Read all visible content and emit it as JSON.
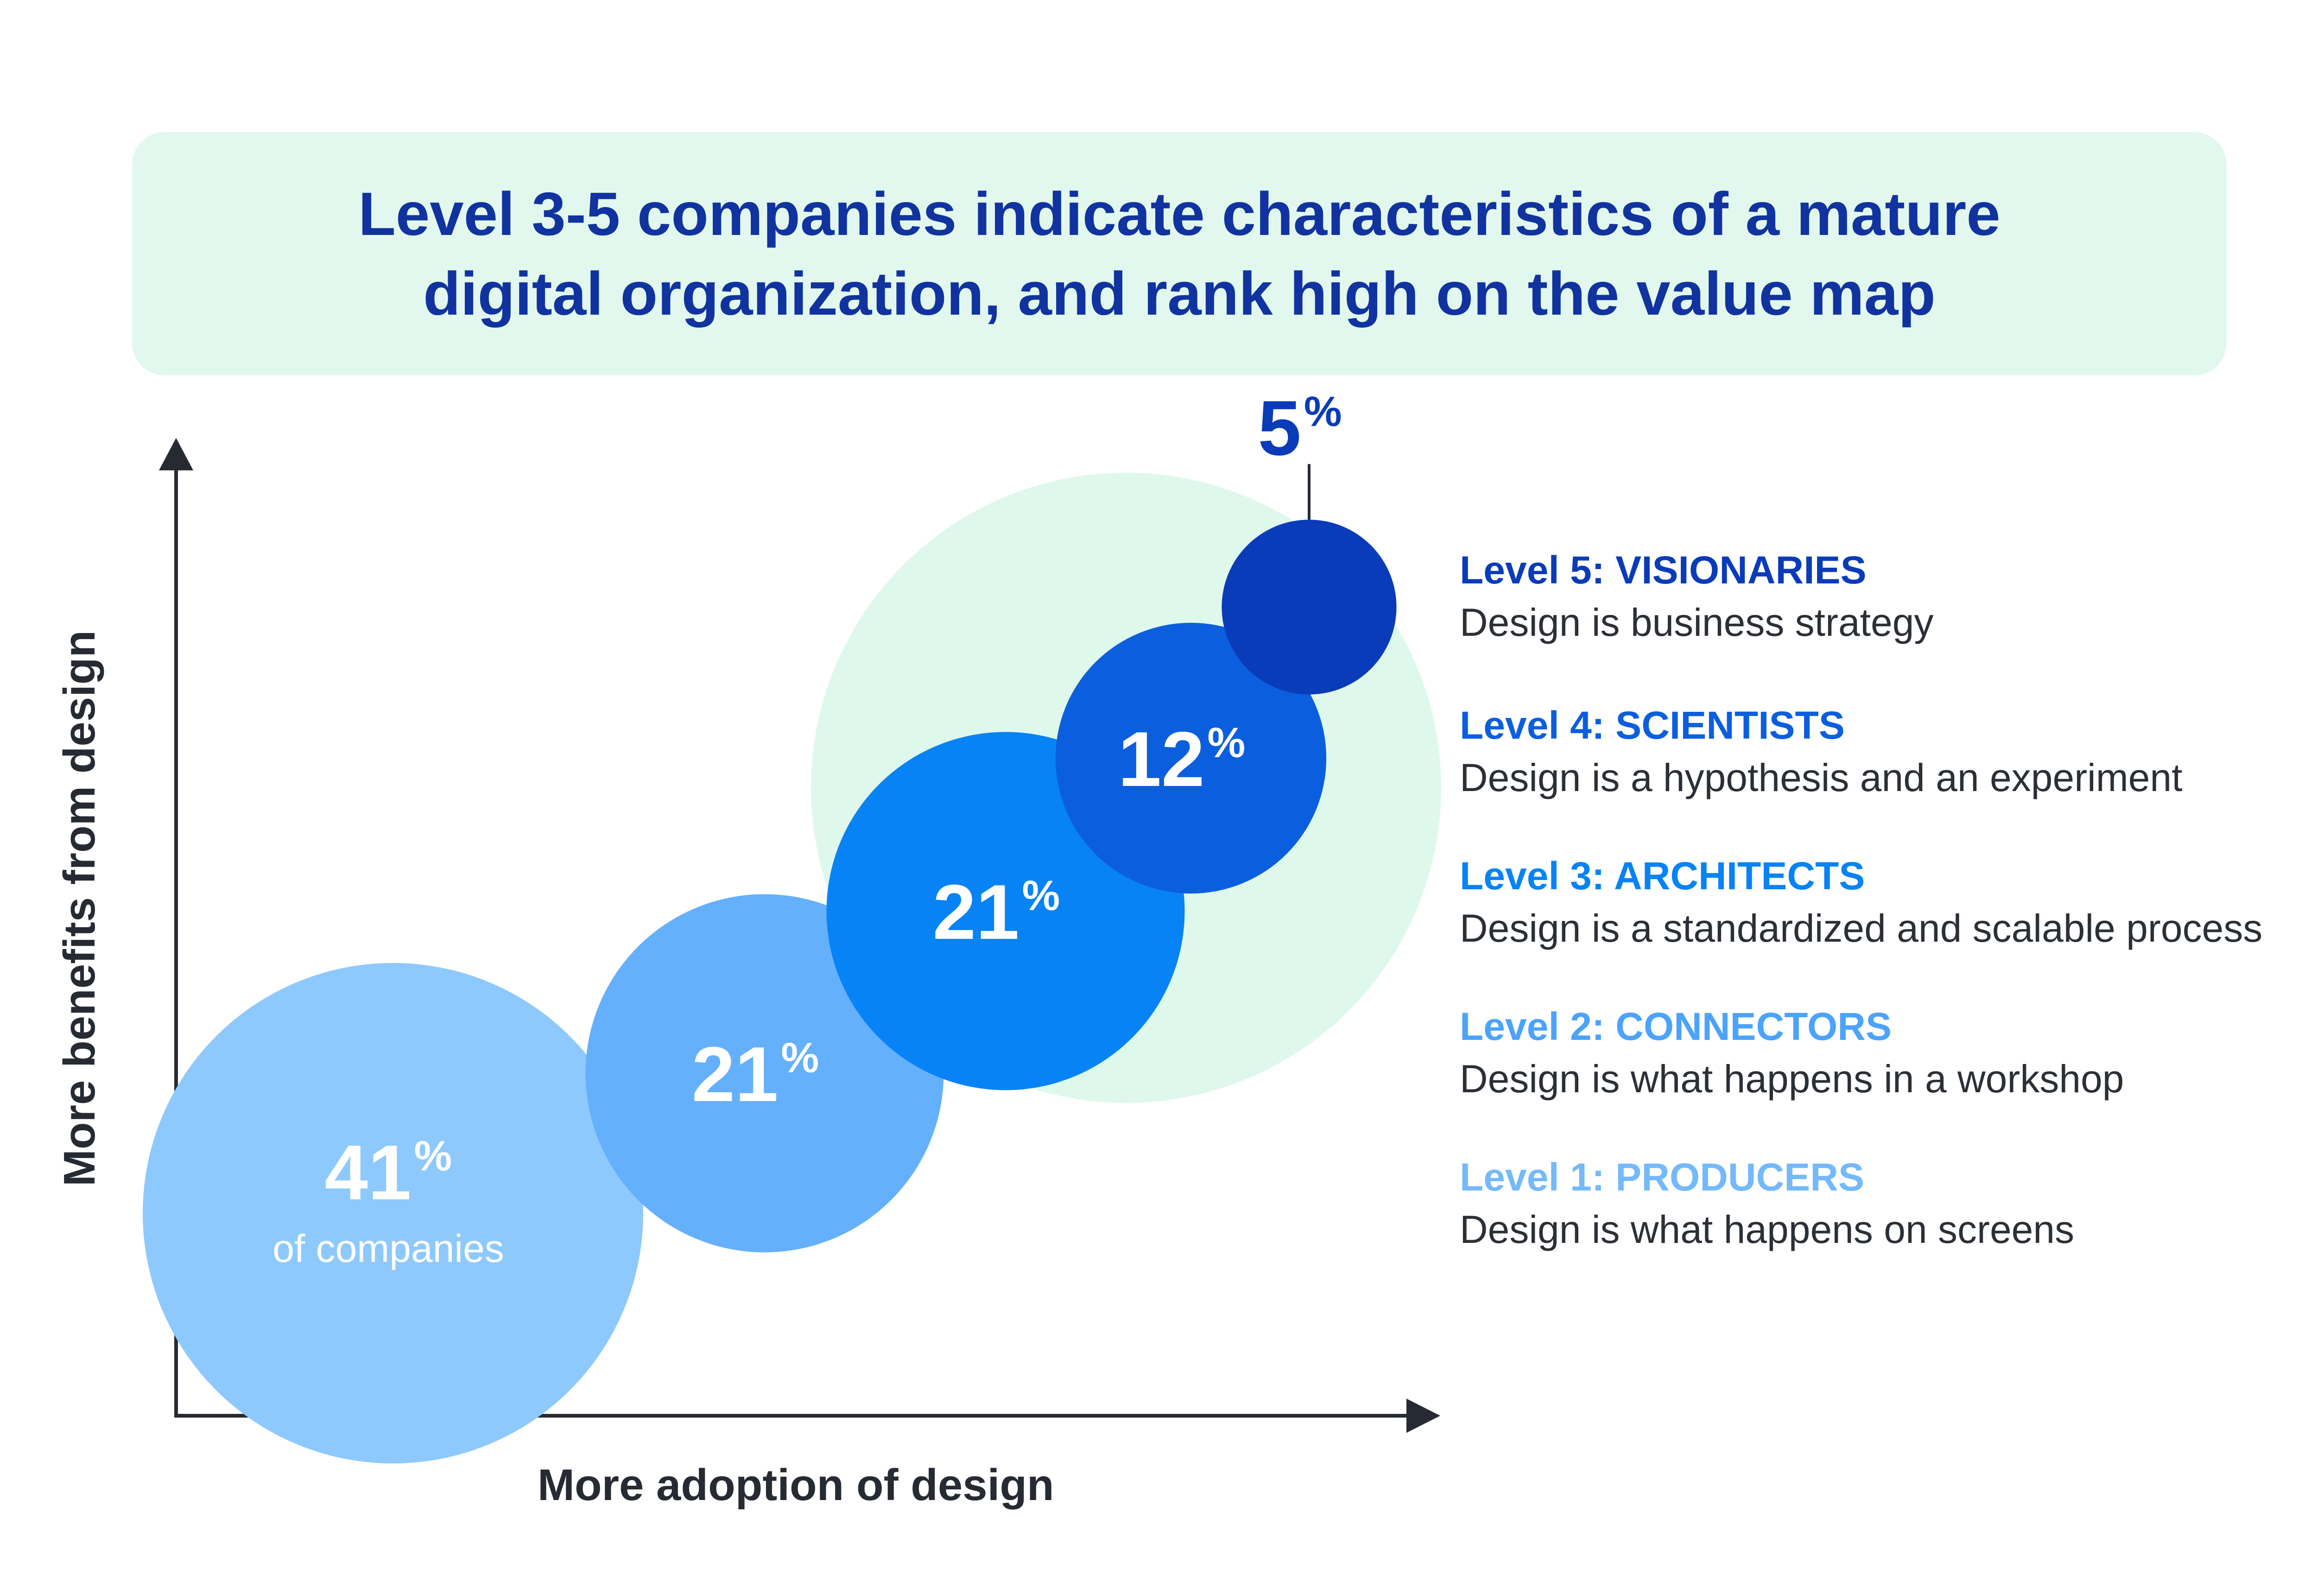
{
  "title": {
    "line1": "Level 3-5 companies indicate characteristics of a mature",
    "line2": "digital organization, and rank high on the value map"
  },
  "axes": {
    "x_label": "More adoption of design",
    "y_label": "More benefits from design"
  },
  "chart_data": {
    "type": "bubble",
    "title": "Level 3-5 companies indicate characteristics of a mature digital organization, and rank high on the value map",
    "xlabel": "More adoption of design",
    "ylabel": "More benefits from design",
    "unit": "%",
    "highlight_group": [
      "Level 3",
      "Level 4",
      "Level 5"
    ],
    "points": [
      {
        "level": "Level 1",
        "name": "PRODUCERS",
        "value": 41,
        "label": "41",
        "sublabel": "of companies",
        "color": "#8ec9fd",
        "text_color": "#ffffff"
      },
      {
        "level": "Level 2",
        "name": "CONNECTORS",
        "value": 21,
        "label": "21",
        "sublabel": "",
        "color": "#64b0fc",
        "text_color": "#ffffff"
      },
      {
        "level": "Level 3",
        "name": "ARCHITECTS",
        "value": 21,
        "label": "21",
        "sublabel": "",
        "color": "#0783f5",
        "text_color": "#ffffff"
      },
      {
        "level": "Level 4",
        "name": "SCIENTISTS",
        "value": 12,
        "label": "12",
        "sublabel": "",
        "color": "#0b5fde",
        "text_color": "#ffffff"
      },
      {
        "level": "Level 5",
        "name": "VISIONARIES",
        "value": 5,
        "label": "5",
        "sublabel": "",
        "color": "#0a3cb9",
        "text_color": "#0a3cb9"
      }
    ],
    "percent_symbol": "%",
    "highlight_color": "#dff8ec",
    "axis_color": "#262b33"
  },
  "legend": [
    {
      "title": "Level 5: VISIONARIES",
      "desc": "Design is business strategy",
      "color": "#0a3cb9"
    },
    {
      "title": "Level 4: SCIENTISTS",
      "desc": "Design is a hypothesis and an experiment",
      "color": "#0b5fde"
    },
    {
      "title": "Level 3: ARCHITECTS",
      "desc": "Design is a standardized and scalable process",
      "color": "#0783f5"
    },
    {
      "title": "Level 2: CONNECTORS",
      "desc": "Design is what happens in a workshop",
      "color": "#4ba3fb"
    },
    {
      "title": "Level 1: PRODUCERS",
      "desc": "Design is what happens on screens",
      "color": "#74b9fb"
    }
  ]
}
